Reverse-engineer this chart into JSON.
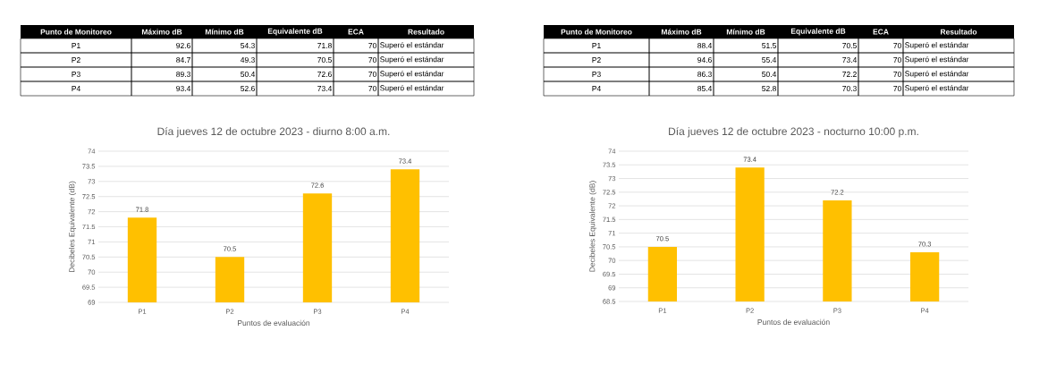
{
  "chart_data": [
    {
      "type": "other",
      "categories": [
        "Punto de Monitoreo",
        "Máximo dB",
        "Mínimo dB",
        "Equivalente dB",
        "ECA",
        "Resultado"
      ],
      "cell_labels": [
        [
          "P1",
          "92.6",
          "54.3",
          "71.8",
          "70",
          "Superó el estándar"
        ],
        [
          "P2",
          "84.7",
          "49.3",
          "70.5",
          "70",
          "Superó el estándar"
        ],
        [
          "P3",
          "89.3",
          "50.4",
          "72.6",
          "70",
          "Superó el estándar"
        ],
        [
          "P4",
          "93.4",
          "52.6",
          "73.4",
          "70",
          "Superó el estándar"
        ]
      ]
    },
    {
      "type": "bar",
      "title": "Día jueves 12 de octubre 2023 - diurno 8:00 a.m.",
      "xlabel": "Puntos de evaluación",
      "ylabel": "Decibeles Equivalente (dB)",
      "categories": [
        "P1",
        "P2",
        "P3",
        "P4"
      ],
      "values": [
        71.8,
        70.5,
        72.6,
        73.4
      ],
      "color": "#ffc000",
      "ylim": [
        69,
        74
      ],
      "yticks": [
        69,
        69.5,
        70,
        70.5,
        71,
        71.5,
        72,
        72.5,
        73,
        73.5,
        74
      ],
      "grid": "y",
      "data_labels": true
    },
    {
      "type": "other",
      "categories": [
        "Punto de Monitoreo",
        "Máximo dB",
        "Mínimo dB",
        "Equivalente dB",
        "ECA",
        "Resultado"
      ],
      "cell_labels": [
        [
          "P1",
          "88.4",
          "51.5",
          "70.5",
          "70",
          "Superó el estándar"
        ],
        [
          "P2",
          "94.6",
          "55.4",
          "73.4",
          "70",
          "Superó el estándar"
        ],
        [
          "P3",
          "86.3",
          "50.4",
          "72.2",
          "70",
          "Superó el estándar"
        ],
        [
          "P4",
          "85.4",
          "52.8",
          "70.3",
          "70",
          "Superó el estándar"
        ]
      ]
    },
    {
      "type": "bar",
      "title": "Día jueves 12 de octubre 2023 - nocturno 10:00 p.m.",
      "xlabel": "Puntos de evaluación",
      "ylabel": "Decibeles Equivalente (dB)",
      "categories": [
        "P1",
        "P2",
        "P3",
        "P4"
      ],
      "values": [
        70.5,
        73.4,
        72.2,
        70.3
      ],
      "color": "#ffc000",
      "ylim": [
        68.5,
        74
      ],
      "yticks": [
        68.5,
        69,
        69.5,
        70,
        70.5,
        71,
        71.5,
        72,
        72.5,
        73,
        73.5,
        74
      ],
      "grid": "y",
      "data_labels": true
    }
  ]
}
